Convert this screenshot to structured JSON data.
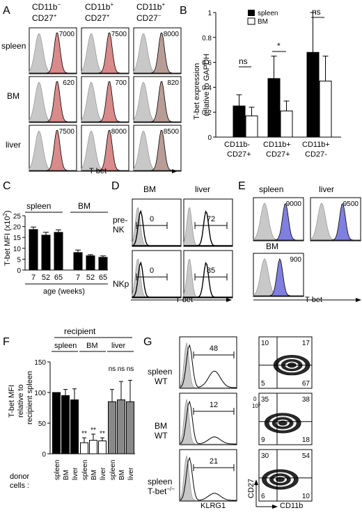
{
  "colors": {
    "red": "#d98a8a",
    "grey": "#c8c8c8",
    "blue": "#7f7fe0",
    "brown": "#b89d96",
    "bar_grey": "#888888"
  },
  "panel_A": {
    "letter": "A",
    "cols": [
      {
        "l1": "CD11b",
        "s1": "−",
        "l2": "CD27",
        "s2": "+"
      },
      {
        "l1": "CD11b",
        "s1": "+",
        "l2": "CD27",
        "s2": "+"
      },
      {
        "l1": "CD11b",
        "s1": "+",
        "l2": "CD27",
        "s2": "−"
      }
    ],
    "rows": [
      "spleen",
      "BM",
      "liver"
    ],
    "values": [
      [
        "7000",
        "7500",
        "8000"
      ],
      [
        "620",
        "700",
        "820"
      ],
      [
        "7500",
        "8000",
        "8500"
      ]
    ],
    "xlabel": "T-bet"
  },
  "panel_B": {
    "letter": "B",
    "ylabel1": "T-bet expression",
    "ylabel2": "relative to GAPDH",
    "legend": [
      "spleen",
      "BM"
    ],
    "sig": [
      "ns",
      "*",
      "ns"
    ],
    "cat_l1": [
      "CD11b-",
      "CD11b+",
      "CD11b+"
    ],
    "cat_l2": [
      "CD27+",
      "CD27+",
      "CD27-"
    ],
    "ticks": [
      "0",
      "0.2",
      "0.4",
      "0.6",
      "0.8",
      "1"
    ]
  },
  "panel_C": {
    "letter": "C",
    "ylabel": "T-bet MFI (x10",
    "ylabel_sup": "2",
    "ylabel_end": ")",
    "groups": [
      "spleen",
      "BM"
    ],
    "ticks": [
      "0",
      "5",
      "10",
      "15",
      "20",
      "25"
    ],
    "xticks": [
      "7",
      "52",
      "65",
      "7",
      "52",
      "65"
    ],
    "xlabel": "age (weeks)"
  },
  "panel_D": {
    "letter": "D",
    "cols": [
      "BM",
      "liver"
    ],
    "rows": [
      "pre-",
      "NK",
      "NKp"
    ],
    "gates": [
      "0",
      "72",
      "0",
      "85"
    ],
    "xlabel": "T-bet"
  },
  "panel_E": {
    "letter": "E",
    "cols": [
      "spleen",
      "liver"
    ],
    "values": [
      "9000",
      "9500",
      "900"
    ],
    "third": "BM",
    "xlabel": "T-bet"
  },
  "panel_F": {
    "letter": "F",
    "top": "recipient",
    "groups": [
      "spleen",
      "BM",
      "liver"
    ],
    "ylabel": [
      "T-bet MFI",
      "relative to",
      "recipient spleen"
    ],
    "ticks": [
      "0",
      "50",
      "100",
      "150"
    ],
    "xticks": [
      "spleen",
      "BM",
      "liver",
      "spleen",
      "BM",
      "liver",
      "spleen",
      "BM",
      "liver"
    ],
    "donor": [
      "donor",
      "cells :"
    ],
    "sig_bm": [
      "**",
      "**",
      "**"
    ],
    "sig_liver": [
      "ns",
      "ns",
      "ns"
    ]
  },
  "panel_G": {
    "letter": "G",
    "rows": [
      [
        "spleen",
        "WT"
      ],
      [
        "BM",
        "WT"
      ],
      [
        "spleen",
        "T-bet"
      ]
    ],
    "tbet_sup": "−/−",
    "gates": [
      "48",
      "12",
      "21"
    ],
    "quads": [
      [
        "10",
        "17",
        "5",
        "67"
      ],
      [
        "35",
        "38",
        "9",
        "18"
      ],
      [
        "30",
        "54",
        "6",
        "10"
      ]
    ],
    "xlabel_hist": "KLRG1",
    "xlabel_dot": "CD11b",
    "ylabel_dot": "CD27",
    "axis_labels": [
      "10",
      "0",
      "10",
      "5"
    ]
  },
  "chart_data": [
    {
      "panel": "B",
      "type": "bar",
      "categories": [
        "CD11b- CD27+",
        "CD11b+ CD27+",
        "CD11b+ CD27-"
      ],
      "series": [
        {
          "name": "spleen",
          "values": [
            0.25,
            0.47,
            0.68
          ],
          "errors": [
            0.09,
            0.18,
            0.32
          ]
        },
        {
          "name": "BM",
          "values": [
            0.17,
            0.21,
            0.45
          ],
          "errors": [
            0.07,
            0.08,
            0.2
          ]
        }
      ],
      "ylabel": "T-bet expression relative to GAPDH",
      "ylim": [
        0,
        1
      ]
    },
    {
      "panel": "C",
      "type": "bar",
      "categories": [
        "7",
        "52",
        "65",
        "7",
        "52",
        "65"
      ],
      "groups": [
        "spleen",
        "spleen",
        "spleen",
        "BM",
        "BM",
        "BM"
      ],
      "values": [
        18.8,
        16.2,
        17.5,
        8.2,
        6.7,
        6.0
      ],
      "errors": [
        1.0,
        1.2,
        1.0,
        1.0,
        0.4,
        0.5
      ],
      "ylabel": "T-bet MFI (x10²)",
      "xlabel": "age (weeks)",
      "ylim": [
        0,
        25
      ]
    },
    {
      "panel": "F",
      "type": "bar",
      "categories": [
        "spleen",
        "BM",
        "liver",
        "spleen",
        "BM",
        "liver",
        "spleen",
        "BM",
        "liver"
      ],
      "groups": [
        "spleen",
        "spleen",
        "spleen",
        "BM",
        "BM",
        "BM",
        "liver",
        "liver",
        "liver"
      ],
      "values": [
        100,
        95,
        88,
        18,
        22,
        21,
        85,
        88,
        85
      ],
      "errors": [
        0,
        10,
        18,
        8,
        10,
        5,
        20,
        30,
        35
      ],
      "ylabel": "T-bet MFI relative to recipient spleen",
      "ylim": [
        0,
        150
      ]
    }
  ]
}
